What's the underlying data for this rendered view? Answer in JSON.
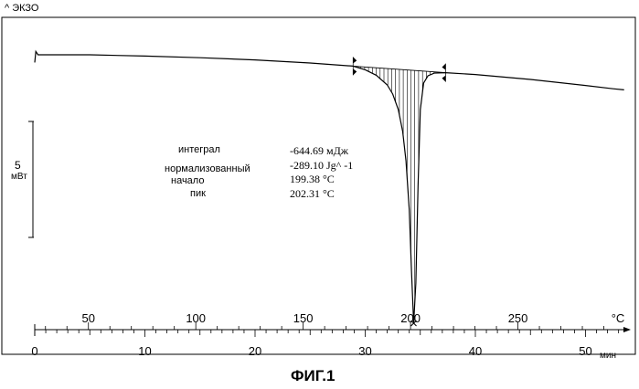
{
  "chart_data": {
    "type": "line",
    "title": "",
    "exo_label": "^ ЭКЗО",
    "caption": "ФИГ.1",
    "scale_bar": {
      "value": "5",
      "unit": "мВт"
    },
    "x_time": {
      "label": "мин",
      "range": [
        0,
        55
      ],
      "ticks": [
        0,
        10,
        20,
        30,
        40,
        50
      ]
    },
    "x_temperature": {
      "label": "°C",
      "range": [
        25,
        300
      ],
      "ticks": [
        50,
        100,
        150,
        200,
        250
      ]
    },
    "annotation": {
      "rows": [
        {
          "label": "интеграл",
          "value": "-644.69 мДж"
        },
        {
          "label": "нормализованный",
          "value": "-289.10 Jg^ -1"
        },
        {
          "label": "начало",
          "value": "199.38 °C"
        },
        {
          "label": "пик",
          "value": "202.31 °C"
        }
      ]
    },
    "integration_limits_min": [
      28.9,
      37.3
    ],
    "series": [
      {
        "x": [
          0,
          0.1,
          0.3,
          5,
          10,
          15,
          20,
          25,
          28.9,
          30,
          31,
          32,
          32.5,
          33,
          33.4,
          33.7,
          34.0,
          34.2,
          34.4,
          34.6,
          34.8,
          35.0,
          35.3,
          35.7,
          36.3,
          37.3,
          40,
          45,
          50,
          52.5,
          53.5
        ],
        "y": [
          0.58,
          1.18,
          1.0,
          1.0,
          0.93,
          0.84,
          0.72,
          0.55,
          0.38,
          0.18,
          -0.12,
          -0.65,
          -1.15,
          -2.0,
          -3.2,
          -4.8,
          -7.5,
          -10.8,
          -13.7,
          -11.5,
          -6.2,
          -2.0,
          -0.55,
          -0.15,
          0.0,
          0.02,
          -0.08,
          -0.35,
          -0.68,
          -0.86,
          -0.92
        ]
      }
    ]
  }
}
